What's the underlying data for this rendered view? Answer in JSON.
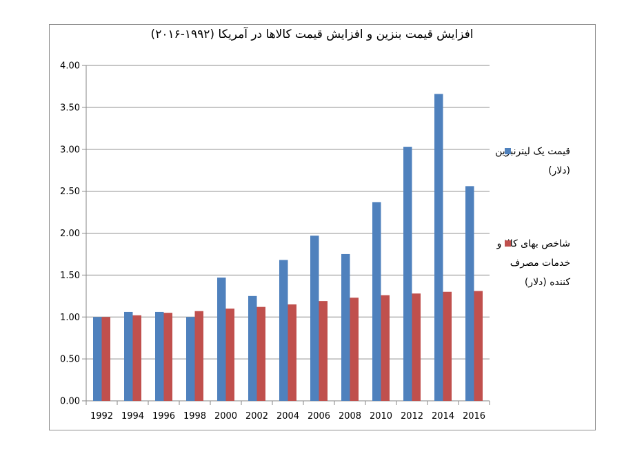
{
  "chart_data": {
    "type": "bar",
    "title": "افزایش قیمت بنزین و افزایش قیمت کالاها در آمریکا (۱۹۹۲-۲۰۱۶)",
    "xlabel": "",
    "ylabel": "",
    "categories": [
      "1992",
      "1994",
      "1996",
      "1998",
      "2000",
      "2002",
      "2004",
      "2006",
      "2008",
      "2010",
      "2012",
      "2014",
      "2016"
    ],
    "ylim": [
      0,
      4
    ],
    "yticks": [
      "0.00",
      "0.50",
      "1.00",
      "1.50",
      "2.00",
      "2.50",
      "3.00",
      "3.50",
      "4.00"
    ],
    "grid": true,
    "legend_position": "right",
    "series": [
      {
        "name": "قیمت یک لیترنبزین (دلار)",
        "color": "#4f81bd",
        "values": [
          1.0,
          1.06,
          1.06,
          1.0,
          1.47,
          1.25,
          1.68,
          1.97,
          1.75,
          2.37,
          3.03,
          3.66,
          2.56
        ]
      },
      {
        "name": "شاخص بهای کالا و خدمات مصرف کننده (دلار)",
        "color": "#c0504d",
        "values": [
          1.0,
          1.02,
          1.05,
          1.07,
          1.1,
          1.12,
          1.15,
          1.19,
          1.23,
          1.26,
          1.28,
          1.3,
          1.31
        ]
      }
    ]
  }
}
